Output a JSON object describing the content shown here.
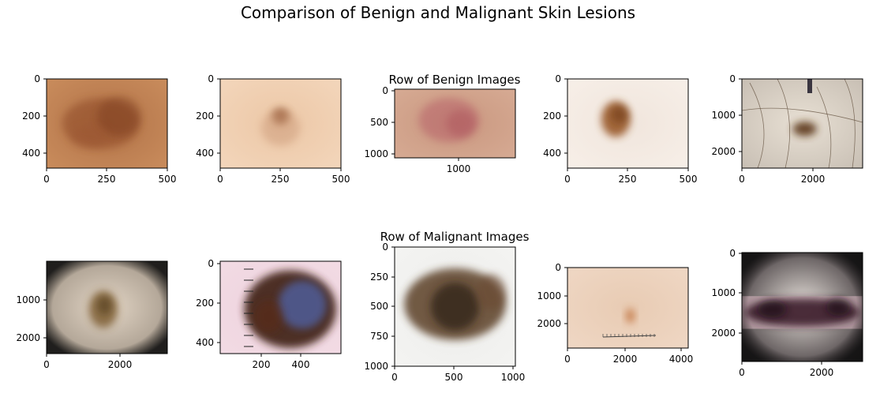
{
  "title": "Comparison of Benign and Malignant Skin Lesions",
  "chart_data": {
    "type": "image_grid",
    "title": "Comparison of Benign and Malignant Skin Lesions",
    "rows": [
      {
        "label": "Row of Benign Images",
        "panels": [
          {
            "xticks": [
              "0",
              "250",
              "500"
            ],
            "yticks": [
              "0",
              "200",
              "400"
            ],
            "image": {
              "base": "#b17248",
              "edge": "#c98c5c",
              "spots": [
                {
                  "cx": 0.45,
                  "cy": 0.5,
                  "rx": 0.32,
                  "ry": 0.28,
                  "color": "#8e4a26",
                  "opacity": 0.55
                },
                {
                  "cx": 0.6,
                  "cy": 0.42,
                  "rx": 0.18,
                  "ry": 0.22,
                  "color": "#7a3b1f",
                  "opacity": 0.45
                },
                {
                  "cx": 0.35,
                  "cy": 0.65,
                  "rx": 0.15,
                  "ry": 0.12,
                  "color": "#9b5530",
                  "opacity": 0.4
                }
              ]
            }
          },
          {
            "xticks": [
              "0",
              "250",
              "500"
            ],
            "yticks": [
              "0",
              "200",
              "400"
            ],
            "image": {
              "base": "#ecc7a6",
              "edge": "#f3d6bb",
              "spots": [
                {
                  "cx": 0.5,
                  "cy": 0.42,
                  "rx": 0.07,
                  "ry": 0.09,
                  "color": "#8a4d2b",
                  "opacity": 0.8
                },
                {
                  "cx": 0.5,
                  "cy": 0.55,
                  "rx": 0.16,
                  "ry": 0.2,
                  "color": "#c89574",
                  "opacity": 0.45
                }
              ]
            }
          },
          {
            "xticks": [
              "1000"
            ],
            "yticks": [
              "0",
              "500",
              "1000"
            ],
            "image": {
              "base": "#c9977f",
              "edge": "#d6aa93",
              "spots": [
                {
                  "cx": 0.45,
                  "cy": 0.45,
                  "rx": 0.25,
                  "ry": 0.32,
                  "color": "#b8626a",
                  "opacity": 0.55
                },
                {
                  "cx": 0.55,
                  "cy": 0.5,
                  "rx": 0.12,
                  "ry": 0.2,
                  "color": "#a84c56",
                  "opacity": 0.4
                }
              ]
            }
          },
          {
            "xticks": [
              "0",
              "250",
              "500"
            ],
            "yticks": [
              "0",
              "200",
              "400"
            ],
            "image": {
              "base": "#f0e5dc",
              "edge": "#f7efe8",
              "spots": [
                {
                  "cx": 0.4,
                  "cy": 0.45,
                  "rx": 0.12,
                  "ry": 0.2,
                  "color": "#9a5a2c",
                  "opacity": 0.9
                },
                {
                  "cx": 0.43,
                  "cy": 0.4,
                  "rx": 0.07,
                  "ry": 0.1,
                  "color": "#6f3a18",
                  "opacity": 0.6
                }
              ]
            }
          },
          {
            "xticks": [
              "0",
              "2000"
            ],
            "yticks": [
              "0",
              "1000",
              "2000"
            ],
            "hair": true,
            "image": {
              "base": "#e8e0d4",
              "edge": "#c8bfb4",
              "spots": [
                {
                  "cx": 0.52,
                  "cy": 0.56,
                  "rx": 0.1,
                  "ry": 0.08,
                  "color": "#5a3418",
                  "opacity": 0.9
                }
              ]
            }
          }
        ]
      },
      {
        "label": "Row of Malignant Images",
        "panels": [
          {
            "xticks": [
              "0",
              "2000"
            ],
            "yticks": [
              "1000",
              "2000"
            ],
            "vignette": true,
            "image": {
              "base": "#e3d6c6",
              "edge": "#9a8e80",
              "spots": [
                {
                  "cx": 0.47,
                  "cy": 0.52,
                  "rx": 0.12,
                  "ry": 0.2,
                  "color": "#7a5a2e",
                  "opacity": 0.8
                },
                {
                  "cx": 0.48,
                  "cy": 0.48,
                  "rx": 0.06,
                  "ry": 0.1,
                  "color": "#4e3716",
                  "opacity": 0.6
                }
              ]
            }
          },
          {
            "xticks": [
              "200",
              "400"
            ],
            "yticks": [
              "0",
              "200",
              "400"
            ],
            "ruler_left": true,
            "image": {
              "base": "#eed2dd",
              "edge": "#f2dbe4",
              "spots": [
                {
                  "cx": 0.58,
                  "cy": 0.52,
                  "rx": 0.38,
                  "ry": 0.42,
                  "color": "#3f2418",
                  "opacity": 0.92
                },
                {
                  "cx": 0.68,
                  "cy": 0.47,
                  "rx": 0.2,
                  "ry": 0.26,
                  "color": "#4f5d99",
                  "opacity": 0.85
                },
                {
                  "cx": 0.4,
                  "cy": 0.6,
                  "rx": 0.12,
                  "ry": 0.18,
                  "color": "#5a2a14",
                  "opacity": 0.6
                }
              ]
            }
          },
          {
            "xticks": [
              "0",
              "500",
              "1000"
            ],
            "yticks": [
              "0",
              "250",
              "500",
              "750",
              "1000"
            ],
            "image": {
              "base": "#ececea",
              "edge": "#f4f4f2",
              "spots": [
                {
                  "cx": 0.5,
                  "cy": 0.48,
                  "rx": 0.42,
                  "ry": 0.3,
                  "color": "#5b4028",
                  "opacity": 0.85
                },
                {
                  "cx": 0.5,
                  "cy": 0.5,
                  "rx": 0.2,
                  "ry": 0.2,
                  "color": "#2e2016",
                  "opacity": 0.75
                },
                {
                  "cx": 0.8,
                  "cy": 0.38,
                  "rx": 0.12,
                  "ry": 0.15,
                  "color": "#6a4a30",
                  "opacity": 0.6
                }
              ]
            }
          },
          {
            "xticks": [
              "0",
              "2000",
              "4000"
            ],
            "yticks": [
              "0",
              "1000",
              "2000"
            ],
            "ruler_bottom": true,
            "image": {
              "base": "#e8cbb3",
              "edge": "#efd7c4",
              "spots": [
                {
                  "cx": 0.52,
                  "cy": 0.6,
                  "rx": 0.035,
                  "ry": 0.09,
                  "color": "#c0703a",
                  "opacity": 0.85
                }
              ]
            }
          },
          {
            "xticks": [
              "0",
              "2000"
            ],
            "yticks": [
              "0",
              "1000",
              "2000"
            ],
            "vignette": true,
            "band": true,
            "image": {
              "base": "#e8e2dc",
              "edge": "#2a2226",
              "spots": [
                {
                  "cx": 0.5,
                  "cy": 0.55,
                  "rx": 0.48,
                  "ry": 0.13,
                  "color": "#3a1f2c",
                  "opacity": 0.9
                },
                {
                  "cx": 0.25,
                  "cy": 0.52,
                  "rx": 0.12,
                  "ry": 0.08,
                  "color": "#1c0f16",
                  "opacity": 0.7
                },
                {
                  "cx": 0.8,
                  "cy": 0.5,
                  "rx": 0.1,
                  "ry": 0.08,
                  "color": "#1c0f16",
                  "opacity": 0.7
                }
              ]
            }
          }
        ]
      }
    ]
  }
}
